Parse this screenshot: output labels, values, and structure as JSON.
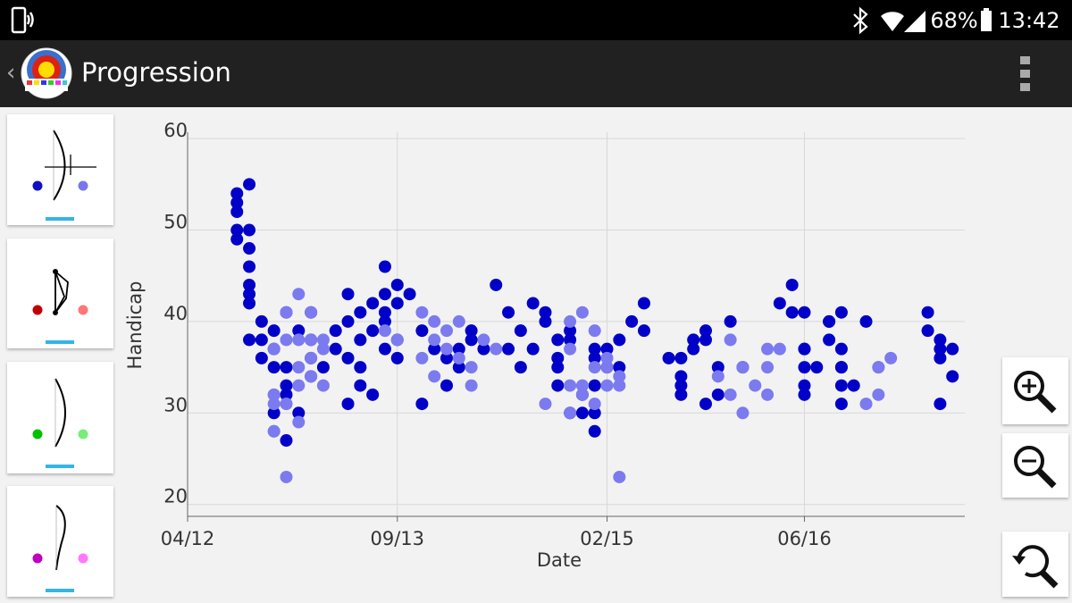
{
  "status_bar": {
    "battery": "68%",
    "time": "13:42"
  },
  "app_bar": {
    "title": "Progression"
  },
  "chart_data": {
    "type": "scatter",
    "x_label": "Date",
    "y_label": "Handicap",
    "xlim": [
      "2012-04",
      "2017-07"
    ],
    "xticks": [
      {
        "value": "2012-04",
        "label": "04/12"
      },
      {
        "value": "2013-09",
        "label": "09/13"
      },
      {
        "value": "2015-02",
        "label": "02/15"
      },
      {
        "value": "2016-06",
        "label": "06/16"
      }
    ],
    "ylim": [
      18.7,
      60.7
    ],
    "yticks": [
      20,
      30,
      40,
      50,
      60
    ],
    "grid": true,
    "series": [
      {
        "color": "#0000c8",
        "x": [
          "2012-08",
          "2012-08",
          "2012-08",
          "2012-08",
          "2012-08",
          "2012-09",
          "2012-09",
          "2012-09",
          "2012-09",
          "2012-09",
          "2012-09",
          "2012-09",
          "2012-09",
          "2012-10",
          "2012-10",
          "2012-10",
          "2012-11",
          "2012-11",
          "2012-11",
          "2012-11",
          "2012-12",
          "2012-12",
          "2012-12",
          "2012-12",
          "2012-12",
          "2013-01",
          "2013-01",
          "2013-02",
          "2013-02",
          "2013-02",
          "2013-02",
          "2013-03",
          "2013-04",
          "2013-04",
          "2013-05",
          "2013-05",
          "2013-05",
          "2013-05",
          "2013-06",
          "2013-06",
          "2013-06",
          "2013-06",
          "2013-07",
          "2013-07",
          "2013-07",
          "2013-08",
          "2013-08",
          "2013-08",
          "2013-08",
          "2013-08",
          "2013-09",
          "2013-09",
          "2013-09",
          "2013-09",
          "2013-10",
          "2013-11",
          "2013-11",
          "2013-12",
          "2014-01",
          "2014-01",
          "2014-02",
          "2014-02",
          "2014-03",
          "2014-03",
          "2014-04",
          "2014-05",
          "2014-06",
          "2014-06",
          "2014-07",
          "2014-07",
          "2014-08",
          "2014-08",
          "2014-09",
          "2014-09",
          "2014-10",
          "2014-10",
          "2014-10",
          "2014-10",
          "2014-11",
          "2014-11",
          "2014-11",
          "2014-12",
          "2014-12",
          "2015-01",
          "2015-01",
          "2015-01",
          "2015-01",
          "2015-01",
          "2015-02",
          "2015-02",
          "2015-03",
          "2015-03",
          "2015-04",
          "2015-05",
          "2015-05",
          "2015-07",
          "2015-08",
          "2015-08",
          "2015-08",
          "2015-08",
          "2015-09",
          "2015-09",
          "2015-10",
          "2015-10",
          "2015-10",
          "2015-11",
          "2015-11",
          "2015-12",
          "2016-01",
          "2016-04",
          "2016-05",
          "2016-05",
          "2016-06",
          "2016-06",
          "2016-06",
          "2016-06",
          "2016-06",
          "2016-06",
          "2016-07",
          "2016-08",
          "2016-08",
          "2016-08",
          "2016-09",
          "2016-09",
          "2016-09",
          "2016-09",
          "2016-09",
          "2016-09",
          "2016-10",
          "2016-11",
          "2017-04",
          "2017-04",
          "2017-05",
          "2017-05",
          "2017-05",
          "2017-05",
          "2017-06",
          "2017-06"
        ],
        "values": [
          53,
          50,
          54,
          52,
          49,
          55,
          50,
          48,
          46,
          44,
          43,
          42,
          38,
          36,
          40,
          38,
          35,
          37,
          39,
          30,
          35,
          27,
          32,
          41,
          33,
          39,
          30,
          41,
          36,
          34,
          38,
          35,
          37,
          39,
          43,
          40,
          31,
          36,
          41,
          38,
          35,
          33,
          42,
          39,
          32,
          40,
          37,
          46,
          43,
          41,
          44,
          38,
          42,
          36,
          43,
          31,
          39,
          37,
          36,
          33,
          35,
          37,
          38,
          39,
          37,
          44,
          37,
          41,
          35,
          39,
          42,
          37,
          40,
          41,
          38,
          36,
          35,
          33,
          30,
          39,
          38,
          32,
          30,
          28,
          37,
          30,
          36,
          33,
          35,
          37,
          35,
          38,
          40,
          42,
          39,
          36,
          32,
          34,
          36,
          33,
          37,
          38,
          38,
          39,
          31,
          32,
          35,
          40,
          35,
          42,
          44,
          41,
          41,
          37,
          35,
          33,
          37,
          32,
          35,
          40,
          38,
          40,
          41,
          35,
          37,
          31,
          33,
          35,
          33,
          40,
          41,
          39,
          31,
          37,
          36,
          38,
          37,
          34
        ]
      },
      {
        "color": "#7b7bef",
        "x": [
          "2012-11",
          "2012-11",
          "2012-11",
          "2012-11",
          "2012-11",
          "2012-11",
          "2012-12",
          "2012-12",
          "2012-12",
          "2012-12",
          "2012-12",
          "2013-01",
          "2013-01",
          "2013-01",
          "2013-01",
          "2013-01",
          "2013-02",
          "2013-02",
          "2013-02",
          "2013-02",
          "2013-03",
          "2013-03",
          "2013-03",
          "2013-08",
          "2013-09",
          "2013-11",
          "2013-11",
          "2013-12",
          "2013-12",
          "2013-12",
          "2014-01",
          "2014-01",
          "2014-02",
          "2014-02",
          "2014-03",
          "2014-03",
          "2014-04",
          "2014-05",
          "2014-09",
          "2014-11",
          "2014-11",
          "2014-11",
          "2014-11",
          "2014-12",
          "2014-12",
          "2014-12",
          "2015-01",
          "2015-01",
          "2015-01",
          "2015-02",
          "2015-02",
          "2015-02",
          "2015-03",
          "2015-03",
          "2015-03",
          "2015-11",
          "2015-12",
          "2015-12",
          "2016-01",
          "2016-01",
          "2016-02",
          "2016-03",
          "2016-03",
          "2016-03",
          "2016-04",
          "2016-11",
          "2016-12",
          "2016-12",
          "2016-12",
          "2017-01"
        ],
        "values": [
          37,
          32,
          28,
          28,
          31,
          32,
          23,
          31,
          31,
          38,
          41,
          43,
          38,
          35,
          33,
          29,
          41,
          38,
          34,
          36,
          38,
          33,
          37,
          39,
          38,
          41,
          36,
          38,
          40,
          34,
          39,
          37,
          36,
          40,
          33,
          35,
          38,
          37,
          31,
          30,
          37,
          40,
          33,
          41,
          33,
          32,
          35,
          39,
          31,
          33,
          35,
          36,
          23,
          33,
          34,
          34,
          38,
          32,
          30,
          35,
          33,
          32,
          35,
          37,
          37,
          31,
          35,
          32,
          35,
          36
        ]
      }
    ]
  }
}
